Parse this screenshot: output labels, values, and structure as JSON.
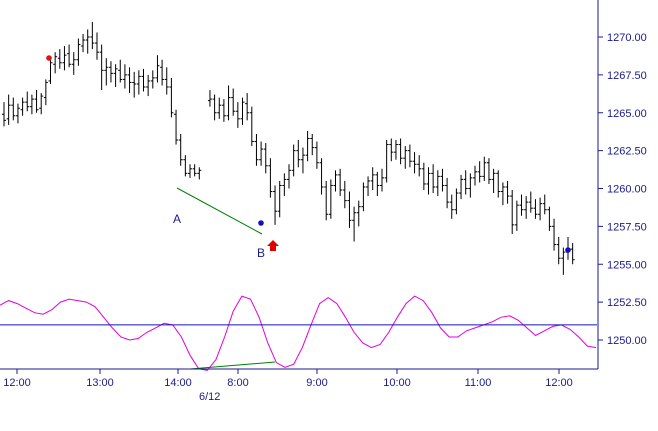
{
  "chart_data": {
    "type": "line",
    "title": "",
    "xlabel": "",
    "ylabel": "",
    "subtitle": "",
    "ylim": [
      1247.0,
      1272.5
    ],
    "y_ticks": [
      "1270.00",
      "1267.50",
      "1265.00",
      "1262.50",
      "1260.00",
      "1257.50",
      "1255.00",
      "1252.50",
      "1250.00"
    ],
    "x_ticks": [
      "12:00",
      "13:00",
      "14:00",
      "8:00",
      "9:00",
      "10:00",
      "11:00",
      "12:00"
    ],
    "date_label": "6/12",
    "grid": false,
    "colors": {
      "axis": "#1a1a8c",
      "bars": "#000000",
      "oscillator": "#e000e0",
      "reference": "#1010c0",
      "trendline": "#008000",
      "dot_red": "#e01010",
      "dot_blue": "#1010c0",
      "arrow": "#e00000"
    },
    "series": [
      {
        "type": "ohlc",
        "values": [
          [
            1264.9,
            1265.7,
            1264.1,
            1264.5
          ],
          [
            1264.6,
            1266.2,
            1264.2,
            1265.5
          ],
          [
            1265.5,
            1266.0,
            1264.5,
            1264.8
          ],
          [
            1264.8,
            1265.6,
            1264.3,
            1265.3
          ],
          [
            1265.2,
            1266.0,
            1264.8,
            1265.7
          ],
          [
            1265.7,
            1266.4,
            1265.1,
            1265.4
          ],
          [
            1265.4,
            1266.2,
            1264.9,
            1265.9
          ],
          [
            1265.9,
            1266.5,
            1265.0,
            1265.2
          ],
          [
            1265.3,
            1266.3,
            1264.9,
            1266.1
          ],
          [
            1266.0,
            1267.2,
            1265.5,
            1267.0
          ],
          [
            1267.1,
            1268.6,
            1266.9,
            1268.3
          ],
          [
            1268.2,
            1269.0,
            1267.6,
            1268.7
          ],
          [
            1268.6,
            1269.2,
            1267.9,
            1268.3
          ],
          [
            1268.3,
            1269.4,
            1267.8,
            1268.8
          ],
          [
            1268.9,
            1269.5,
            1268.0,
            1268.2
          ],
          [
            1268.2,
            1269.0,
            1267.5,
            1268.5
          ],
          [
            1268.5,
            1269.9,
            1268.1,
            1269.5
          ],
          [
            1269.4,
            1270.2,
            1269.0,
            1269.8
          ],
          [
            1269.8,
            1270.5,
            1268.9,
            1270.0
          ],
          [
            1270.0,
            1271.0,
            1269.2,
            1269.6
          ],
          [
            1269.6,
            1270.3,
            1268.5,
            1269.0
          ],
          [
            1269.0,
            1269.5,
            1266.5,
            1267.8
          ],
          [
            1267.8,
            1268.6,
            1266.8,
            1268.0
          ],
          [
            1268.0,
            1268.4,
            1267.0,
            1267.6
          ],
          [
            1267.6,
            1268.2,
            1266.7,
            1267.9
          ],
          [
            1267.8,
            1268.5,
            1267.0,
            1267.2
          ],
          [
            1267.2,
            1268.2,
            1266.6,
            1267.5
          ],
          [
            1267.5,
            1268.0,
            1266.3,
            1267.0
          ],
          [
            1267.0,
            1267.7,
            1266.0,
            1266.9
          ],
          [
            1266.9,
            1267.8,
            1266.2,
            1267.4
          ],
          [
            1267.4,
            1267.9,
            1266.4,
            1266.7
          ],
          [
            1266.7,
            1267.5,
            1266.1,
            1267.1
          ],
          [
            1267.1,
            1267.8,
            1266.6,
            1267.3
          ],
          [
            1267.3,
            1268.8,
            1267.0,
            1268.1
          ],
          [
            1268.0,
            1268.5,
            1266.8,
            1267.2
          ],
          [
            1267.2,
            1268.0,
            1266.2,
            1266.7
          ],
          [
            1266.7,
            1267.3,
            1264.7,
            1265.0
          ],
          [
            1264.9,
            1265.2,
            1262.9,
            1263.2
          ],
          [
            1263.2,
            1263.6,
            1261.5,
            1261.9
          ],
          [
            1261.9,
            1262.2,
            1260.8,
            1261.0
          ],
          [
            1261.0,
            1261.6,
            1260.7,
            1261.3
          ],
          [
            1261.3,
            1261.6,
            1260.8,
            1261.0
          ],
          [
            1261.0,
            1261.4,
            1260.6,
            1261.2
          ],
          [
            1265.8,
            1266.5,
            1265.4,
            1265.9
          ],
          [
            1265.9,
            1266.2,
            1264.5,
            1265.0
          ],
          [
            1265.0,
            1266.0,
            1264.6,
            1265.5
          ],
          [
            1265.5,
            1265.9,
            1264.4,
            1264.8
          ],
          [
            1264.8,
            1266.8,
            1264.5,
            1266.0
          ],
          [
            1266.0,
            1266.6,
            1264.8,
            1265.1
          ],
          [
            1265.1,
            1265.7,
            1264.0,
            1264.6
          ],
          [
            1264.6,
            1266.0,
            1264.2,
            1265.7
          ],
          [
            1265.6,
            1266.3,
            1264.5,
            1265.0
          ],
          [
            1265.0,
            1265.4,
            1262.8,
            1263.1
          ],
          [
            1263.1,
            1263.6,
            1261.5,
            1261.9
          ],
          [
            1261.9,
            1263.1,
            1261.5,
            1262.6
          ],
          [
            1262.6,
            1263.0,
            1261.0,
            1261.5
          ],
          [
            1261.5,
            1262.0,
            1259.4,
            1259.8
          ],
          [
            1259.8,
            1260.2,
            1257.6,
            1258.5
          ],
          [
            1258.5,
            1260.5,
            1258.1,
            1260.2
          ],
          [
            1260.2,
            1261.0,
            1259.5,
            1260.6
          ],
          [
            1260.6,
            1261.6,
            1260.0,
            1261.2
          ],
          [
            1261.2,
            1262.9,
            1260.8,
            1262.5
          ],
          [
            1262.5,
            1263.2,
            1261.4,
            1261.9
          ],
          [
            1261.9,
            1262.7,
            1261.0,
            1262.2
          ],
          [
            1262.2,
            1263.8,
            1261.8,
            1263.3
          ],
          [
            1263.3,
            1263.6,
            1262.2,
            1262.7
          ],
          [
            1262.7,
            1263.1,
            1261.3,
            1261.7
          ],
          [
            1261.7,
            1262.0,
            1259.6,
            1260.1
          ],
          [
            1260.1,
            1260.5,
            1257.9,
            1258.3
          ],
          [
            1258.3,
            1260.6,
            1258.0,
            1260.2
          ],
          [
            1260.2,
            1261.2,
            1259.8,
            1260.9
          ],
          [
            1260.9,
            1261.3,
            1259.5,
            1259.9
          ],
          [
            1259.9,
            1260.5,
            1258.7,
            1259.2
          ],
          [
            1259.2,
            1259.8,
            1257.4,
            1257.9
          ],
          [
            1257.9,
            1258.8,
            1256.5,
            1258.4
          ],
          [
            1258.4,
            1259.2,
            1257.5,
            1258.8
          ],
          [
            1258.8,
            1260.4,
            1258.5,
            1260.1
          ],
          [
            1260.1,
            1260.8,
            1259.5,
            1260.5
          ],
          [
            1260.5,
            1261.4,
            1259.9,
            1260.9
          ],
          [
            1260.9,
            1261.1,
            1259.5,
            1260.2
          ],
          [
            1260.2,
            1261.3,
            1259.8,
            1260.7
          ],
          [
            1260.7,
            1263.2,
            1260.4,
            1262.9
          ],
          [
            1262.9,
            1263.3,
            1261.8,
            1262.4
          ],
          [
            1262.4,
            1263.2,
            1261.9,
            1262.9
          ],
          [
            1262.9,
            1263.3,
            1261.6,
            1262.0
          ],
          [
            1262.0,
            1262.8,
            1261.3,
            1262.5
          ],
          [
            1262.5,
            1262.9,
            1261.4,
            1261.8
          ],
          [
            1261.8,
            1262.4,
            1261.0,
            1261.6
          ],
          [
            1261.6,
            1262.2,
            1260.8,
            1261.3
          ],
          [
            1261.3,
            1261.7,
            1259.9,
            1260.3
          ],
          [
            1260.3,
            1261.4,
            1259.6,
            1261.0
          ],
          [
            1261.0,
            1261.6,
            1259.7,
            1260.1
          ],
          [
            1260.1,
            1261.2,
            1259.5,
            1260.8
          ],
          [
            1260.8,
            1261.3,
            1259.8,
            1260.2
          ],
          [
            1260.2,
            1260.7,
            1258.7,
            1259.1
          ],
          [
            1259.1,
            1259.6,
            1258.0,
            1258.6
          ],
          [
            1258.6,
            1260.0,
            1258.3,
            1259.7
          ],
          [
            1259.7,
            1260.9,
            1259.3,
            1260.6
          ],
          [
            1260.6,
            1261.2,
            1259.6,
            1260.0
          ],
          [
            1260.0,
            1261.0,
            1259.4,
            1260.7
          ],
          [
            1260.7,
            1261.5,
            1260.2,
            1261.1
          ],
          [
            1261.1,
            1261.8,
            1260.4,
            1260.8
          ],
          [
            1260.8,
            1262.1,
            1260.5,
            1261.7
          ],
          [
            1261.7,
            1262.0,
            1260.3,
            1260.6
          ],
          [
            1260.6,
            1261.3,
            1259.7,
            1261.0
          ],
          [
            1261.0,
            1261.2,
            1259.4,
            1259.8
          ],
          [
            1259.8,
            1260.4,
            1258.9,
            1260.1
          ],
          [
            1260.1,
            1260.5,
            1259.0,
            1259.5
          ],
          [
            1259.5,
            1259.9,
            1257.0,
            1257.6
          ],
          [
            1257.6,
            1259.2,
            1257.2,
            1258.9
          ],
          [
            1258.9,
            1259.6,
            1258.2,
            1258.6
          ],
          [
            1258.6,
            1259.5,
            1258.0,
            1259.1
          ],
          [
            1259.1,
            1259.8,
            1258.4,
            1258.7
          ],
          [
            1258.7,
            1259.3,
            1258.0,
            1258.3
          ],
          [
            1258.3,
            1259.4,
            1257.9,
            1259.0
          ],
          [
            1259.0,
            1259.6,
            1258.3,
            1258.6
          ],
          [
            1258.6,
            1258.8,
            1257.2,
            1257.5
          ],
          [
            1257.5,
            1258.0,
            1255.9,
            1256.3
          ],
          [
            1256.3,
            1256.8,
            1255.0,
            1255.4
          ],
          [
            1255.4,
            1256.1,
            1254.3,
            1255.8
          ],
          [
            1255.8,
            1256.8,
            1255.3,
            1256.0
          ],
          [
            1256.0,
            1256.4,
            1255.0,
            1255.3
          ]
        ]
      },
      {
        "type": "oscillator",
        "values": [
          1252.3,
          1252.6,
          1252.4,
          1252.1,
          1251.8,
          1251.7,
          1252.0,
          1252.5,
          1252.7,
          1252.6,
          1252.5,
          1252.2,
          1251.5,
          1250.8,
          1250.2,
          1250.0,
          1250.1,
          1250.5,
          1250.8,
          1251.1,
          1251.0,
          1250.2,
          1249.0,
          1248.1,
          1248.0,
          1248.7,
          1250.2,
          1251.9,
          1252.9,
          1252.7,
          1251.5,
          1249.8,
          1248.5,
          1248.2,
          1248.4,
          1249.5,
          1251.0,
          1252.4,
          1252.8,
          1252.4,
          1251.5,
          1250.5,
          1249.8,
          1249.5,
          1249.7,
          1250.5,
          1251.5,
          1252.4,
          1252.9,
          1252.6,
          1251.8,
          1250.8,
          1250.2,
          1250.2,
          1250.6,
          1250.8,
          1251.0,
          1251.2,
          1251.5,
          1251.6,
          1251.3,
          1250.8,
          1250.3,
          1250.6,
          1250.9,
          1251.0,
          1250.7,
          1250.2,
          1249.6,
          1249.5
        ]
      }
    ],
    "reference_line": 1251.0,
    "markers": [
      {
        "label": "A",
        "type": "text"
      },
      {
        "label": "B",
        "type": "text"
      }
    ]
  }
}
